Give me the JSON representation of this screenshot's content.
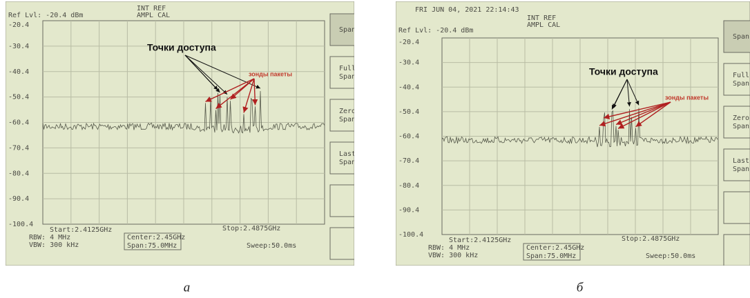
{
  "panels": [
    {
      "caption": "а",
      "ref_level": "Ref Lvl: -20.4 dBm",
      "int_ref": "INT REF",
      "ampl": "AMPL   CAL",
      "y_labels": [
        "-20.4",
        "-30.4",
        "-40.4",
        "-50.4",
        "-60.4",
        "-70.4",
        "-80.4",
        "-90.4",
        "-100.4"
      ],
      "start": "Start:2.4125GHz",
      "stop": "Stop:2.4875GHz",
      "rbw": "RBW: 4 MHz",
      "vbw": "VBW: 300 kHz",
      "center": "Center:2.45GHz",
      "span": "Span:75.0MHz",
      "sweep": "Sweep:50.0ms",
      "buttons": [
        "Span",
        "Full Span",
        "Zero Span",
        "Last Span"
      ],
      "access_points": "Точки доступа",
      "probe_packets": "зонды пакеты"
    },
    {
      "caption": "б",
      "date": "FRI JUN 04, 2021    22:14:43",
      "ref_level": "Ref Lvl: -20.4 dBm",
      "int_ref": "INT REF",
      "ampl": "AMPL   CAL",
      "y_labels": [
        "-20.4",
        "-30.4",
        "-40.4",
        "-50.4",
        "-60.4",
        "-70.4",
        "-80.4",
        "-90.4",
        "-100.4"
      ],
      "start": "Start:2.4125GHz",
      "stop": "Stop:2.4875GHz",
      "rbw": "RBW: 4 MHz",
      "vbw": "VBW: 300 kHz",
      "center": "Center:2.45GHz",
      "span": "Span:75.0MHz",
      "sweep": "Sweep:50.0ms",
      "buttons": [
        "Span",
        "Full Span",
        "Zero Span",
        "Last Span"
      ],
      "access_points": "Точки доступа",
      "probe_packets": "зонды пакеты"
    }
  ]
}
